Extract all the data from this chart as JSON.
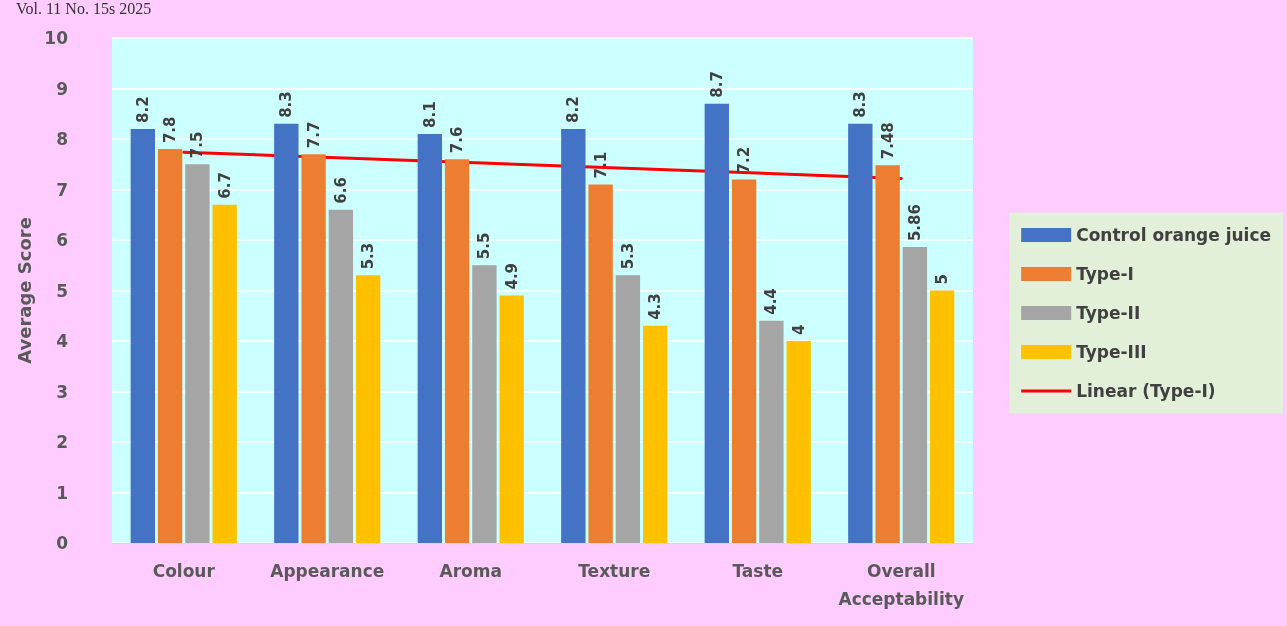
{
  "chart_data": {
    "type": "bar",
    "ylabel": "Average Score",
    "annotations": [
      "Vol. 11 No. 15s 2025"
    ],
    "categories": [
      "Colour",
      "Appearance",
      "Aroma",
      "Texture",
      "Taste",
      "Overall Acceptability"
    ],
    "series": [
      {
        "name": "Control orange juice",
        "color": "#4472c4",
        "values": [
          8.2,
          8.3,
          8.1,
          8.2,
          8.7,
          8.3
        ],
        "value_labels": [
          "8.2",
          "8.3",
          "8.1",
          "8.2",
          "8.7",
          "8.3"
        ]
      },
      {
        "name": "Type-I",
        "color": "#ed7d31",
        "values": [
          7.8,
          7.7,
          7.6,
          7.1,
          7.2,
          7.48
        ],
        "value_labels": [
          "7.8",
          "7.7",
          "7.6",
          "7.1",
          "7.2",
          "7.48"
        ]
      },
      {
        "name": "Type-II",
        "color": "#a5a5a5",
        "values": [
          7.5,
          6.6,
          5.5,
          5.3,
          4.4,
          5.86
        ],
        "value_labels": [
          "7.5",
          "6.6",
          "5.5",
          "5.3",
          "4.4",
          "5.86"
        ]
      },
      {
        "name": "Type-III",
        "color": "#ffc000",
        "values": [
          6.7,
          5.3,
          4.9,
          4.3,
          4,
          5
        ],
        "value_labels": [
          "6.7",
          "5.3",
          "4.9",
          "4.3",
          "4",
          "5"
        ]
      },
      {
        "name": "Linear (Type-I)",
        "type": "line",
        "color": "#ff0000",
        "x": [
          "Colour",
          "Overall Acceptability"
        ],
        "values": [
          7.74,
          7.22
        ],
        "marker": "none"
      }
    ],
    "ylim": [
      0,
      10
    ],
    "yticks": [
      0,
      1,
      2,
      3,
      4,
      5,
      6,
      7,
      8,
      9,
      10
    ],
    "grid": "y",
    "legend": "right"
  }
}
